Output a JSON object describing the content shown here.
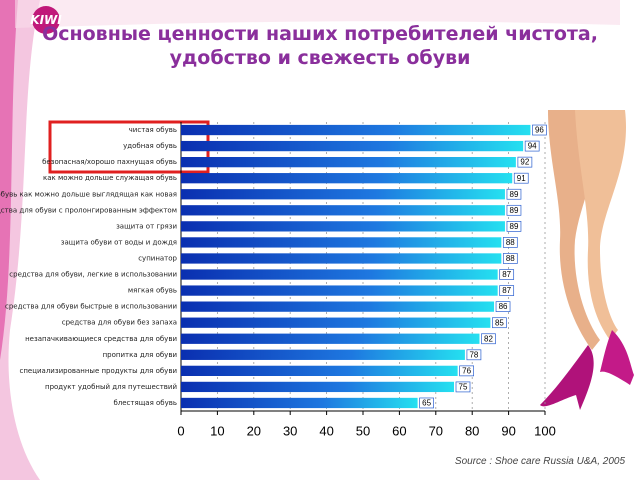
{
  "logo": "KIWI",
  "chart_data": {
    "type": "barh",
    "title": [
      "Основные ценности наших потребителей чистота,",
      "удобство и свежесть обуви"
    ],
    "source": "Source : Shoe care Russia U&A, 2005",
    "categories": [
      "чистая обувь",
      "удобная обувь",
      "безопасная/хорошо пахнущая обувь",
      "как можно дольше служащая обувь",
      "обувь как можно дольше выглядящая как новая",
      "средства для обуви с пролонгированным эффектом",
      "защита от грязи",
      "защита обуви от воды и дождя",
      "супинатор",
      "средства для обуви, легкие в использовании",
      "мягкая обувь",
      "средства для обуви быстрые в использовании",
      "средства для обуви без запаха",
      "незапачкивающиеся средства для обуви",
      "пропитка для обуви",
      "специализированные продукты для обуви",
      "продукт удобный для путешествий",
      "блестящая обувь"
    ],
    "values": [
      96,
      94,
      92,
      91,
      89,
      89,
      89,
      88,
      88,
      87,
      87,
      86,
      85,
      82,
      78,
      76,
      75,
      65
    ],
    "color": "#1e78e0",
    "xlim": [
      0,
      100
    ],
    "xticks": [
      0,
      10,
      20,
      30,
      40,
      50,
      60,
      70,
      80,
      90,
      100
    ],
    "grid": true
  }
}
